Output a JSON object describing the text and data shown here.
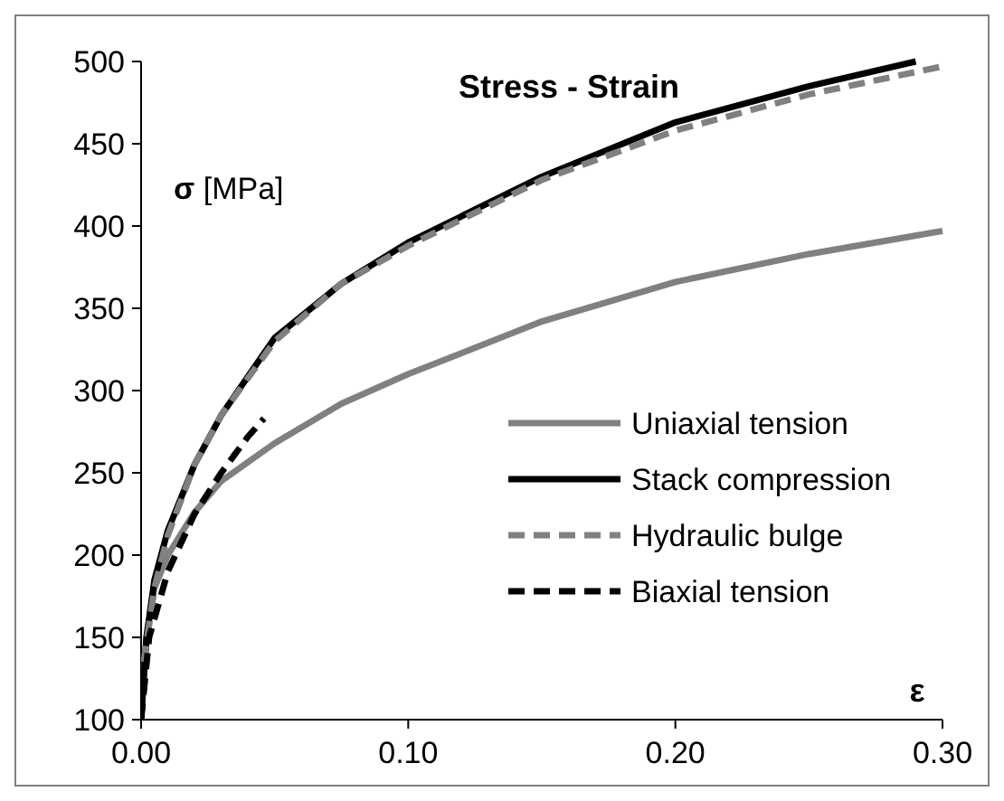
{
  "chart_data": {
    "type": "line",
    "title": "Stress - Strain",
    "xlabel": "ε",
    "ylabel": "σ [MPa]",
    "xlim": [
      0,
      0.3
    ],
    "xticks": [
      {
        "value": 0,
        "label": "0.00"
      },
      {
        "value": 0.1,
        "label": "0.10"
      },
      {
        "value": 0.2,
        "label": "0.20"
      },
      {
        "value": 0.3,
        "label": "0.30"
      }
    ],
    "ylim": [
      100,
      500
    ],
    "yticks": [
      100,
      150,
      200,
      250,
      300,
      350,
      400,
      450,
      500
    ],
    "grid": false,
    "legend": "bottom right",
    "marker": "none",
    "series": [
      {
        "name": "Uniaxial tension",
        "color": "#808080",
        "line_style": "solid",
        "x": [
          0,
          0.002,
          0.005,
          0.01,
          0.02,
          0.03,
          0.05,
          0.075,
          0.1,
          0.15,
          0.2,
          0.25,
          0.3
        ],
        "values": [
          100,
          150,
          180,
          200,
          226,
          245,
          268,
          292,
          310,
          342,
          366,
          383,
          397
        ]
      },
      {
        "name": "Stack compression",
        "color": "#000000",
        "line_style": "solid",
        "x": [
          0,
          0.002,
          0.005,
          0.01,
          0.02,
          0.03,
          0.05,
          0.075,
          0.1,
          0.15,
          0.2,
          0.25,
          0.29
        ],
        "values": [
          100,
          150,
          185,
          215,
          255,
          285,
          332,
          365,
          390,
          430,
          463,
          485,
          500
        ]
      },
      {
        "name": "Hydraulic bulge",
        "color": "#808080",
        "line_style": "dashed",
        "x": [
          0.001,
          0.005,
          0.01,
          0.02,
          0.03,
          0.05,
          0.075,
          0.1,
          0.15,
          0.2,
          0.25,
          0.3
        ],
        "values": [
          135,
          180,
          212,
          255,
          285,
          330,
          365,
          388,
          428,
          458,
          480,
          497
        ]
      },
      {
        "name": "Biaxial tension",
        "color": "#000000",
        "line_style": "dashed",
        "x": [
          0,
          0.003,
          0.01,
          0.02,
          0.03,
          0.04,
          0.046
        ],
        "values": [
          100,
          150,
          190,
          225,
          250,
          272,
          283
        ]
      }
    ]
  }
}
